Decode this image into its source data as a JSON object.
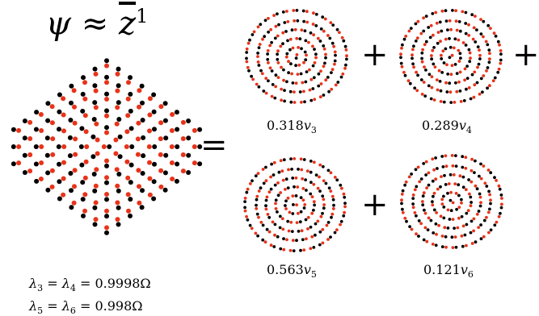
{
  "title": {
    "psi": "ψ",
    "approx": "≈",
    "z": "z",
    "exponent": "1"
  },
  "operators": {
    "equals": "=",
    "plus": "+"
  },
  "components": [
    {
      "coef": "0.318",
      "v": "v",
      "sub": "3"
    },
    {
      "coef": "0.289",
      "v": "v",
      "sub": "4"
    },
    {
      "coef": "0.563",
      "v": "v",
      "sub": "5"
    },
    {
      "coef": "0.121",
      "v": "v",
      "sub": "6"
    }
  ],
  "eigenvalues": [
    {
      "lhs_sym": "λ",
      "lhs_sub": "3",
      "mid_sym": "λ",
      "mid_sub": "4",
      "value": "0.9998Ω"
    },
    {
      "lhs_sym": "λ",
      "lhs_sub": "5",
      "mid_sym": "λ",
      "mid_sub": "6",
      "value": "0.998Ω"
    }
  ],
  "colors": {
    "dot_red": "#e8331a",
    "dot_black": "#000000"
  }
}
